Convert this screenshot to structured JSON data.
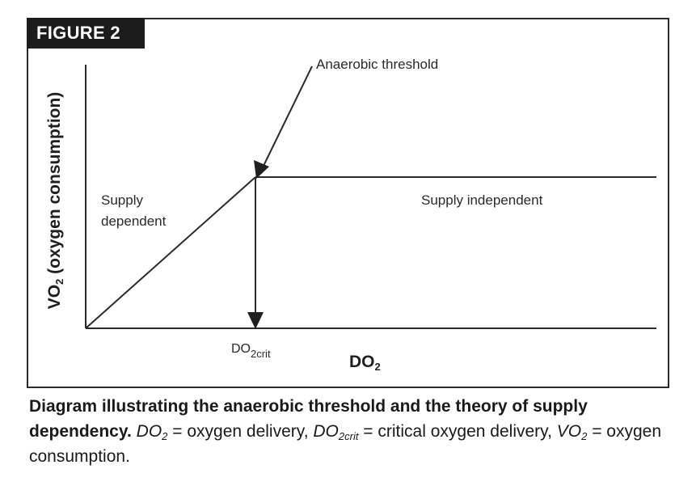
{
  "figure": {
    "badge": "FIGURE 2"
  },
  "diagram": {
    "y_axis": {
      "prefix": "VO",
      "subscript": "2",
      "suffix": " (oxygen consumption)"
    },
    "x_axis": {
      "prefix": "DO",
      "subscript": "2"
    },
    "annotations": {
      "anaerobic_threshold": "Anaerobic threshold",
      "supply_dependent_line1": "Supply",
      "supply_dependent_line2": "dependent",
      "supply_independent": "Supply independent",
      "critical_point_prefix": "DO",
      "critical_point_subscript": "2crit"
    }
  },
  "caption": {
    "bold_text": "Diagram illustrating the anaerobic threshold and the theory of supply dependency.",
    "do2_prefix": "DO",
    "do2_sub": "2",
    "do2_def": " = oxygen delivery, ",
    "do2crit_prefix": "DO",
    "do2crit_sub": "2crit",
    "do2crit_def": " = critical oxygen delivery, ",
    "vo2_prefix": "VO",
    "vo2_sub": "2",
    "vo2_def": " = oxygen consumption."
  }
}
